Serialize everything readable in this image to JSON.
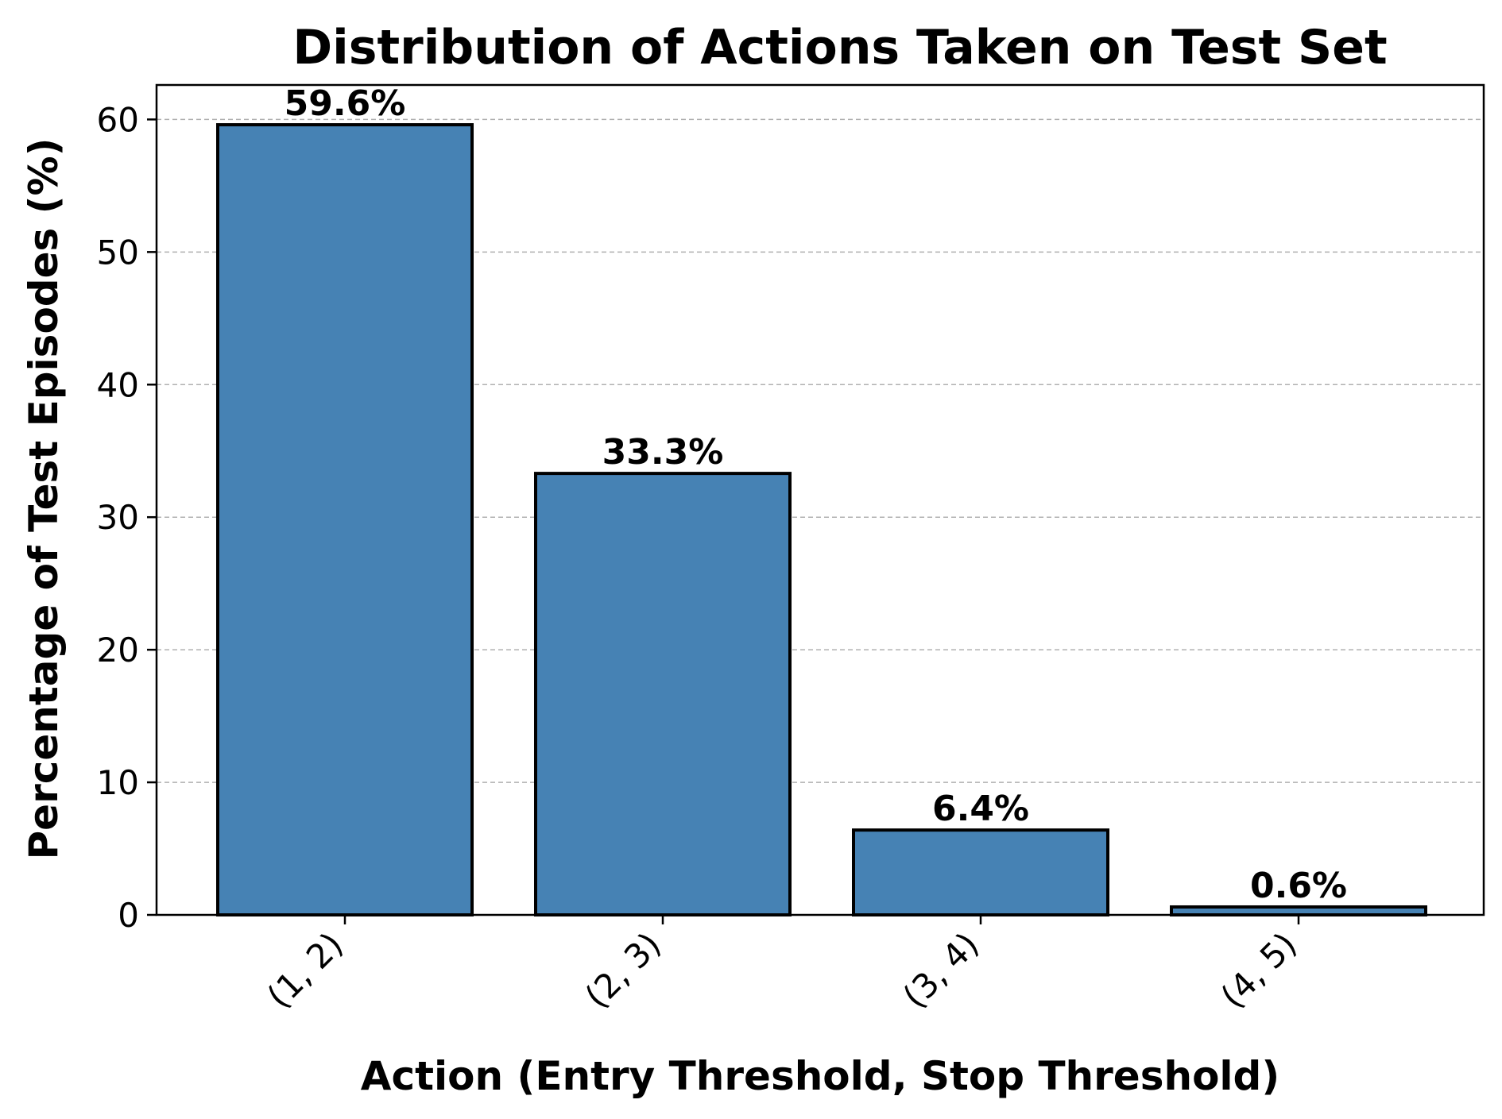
{
  "chart_data": {
    "type": "bar",
    "title": "Distribution of Actions Taken on Test Set",
    "xlabel": "Action (Entry Threshold, Stop Threshold)",
    "ylabel": "Percentage of Test Episodes (%)",
    "categories": [
      "(1, 2)",
      "(2, 3)",
      "(3, 4)",
      "(4, 5)"
    ],
    "values": [
      59.6,
      33.3,
      6.4,
      0.6
    ],
    "data_labels": [
      "59.6%",
      "33.3%",
      "6.4%",
      "0.6%"
    ],
    "yticks": [
      0,
      10,
      20,
      30,
      40,
      50,
      60
    ],
    "ylim": [
      0,
      62.6
    ],
    "bar_color": "#4682b4",
    "edge_color": "#000000",
    "grid": "y-dashed",
    "legend": "none"
  }
}
